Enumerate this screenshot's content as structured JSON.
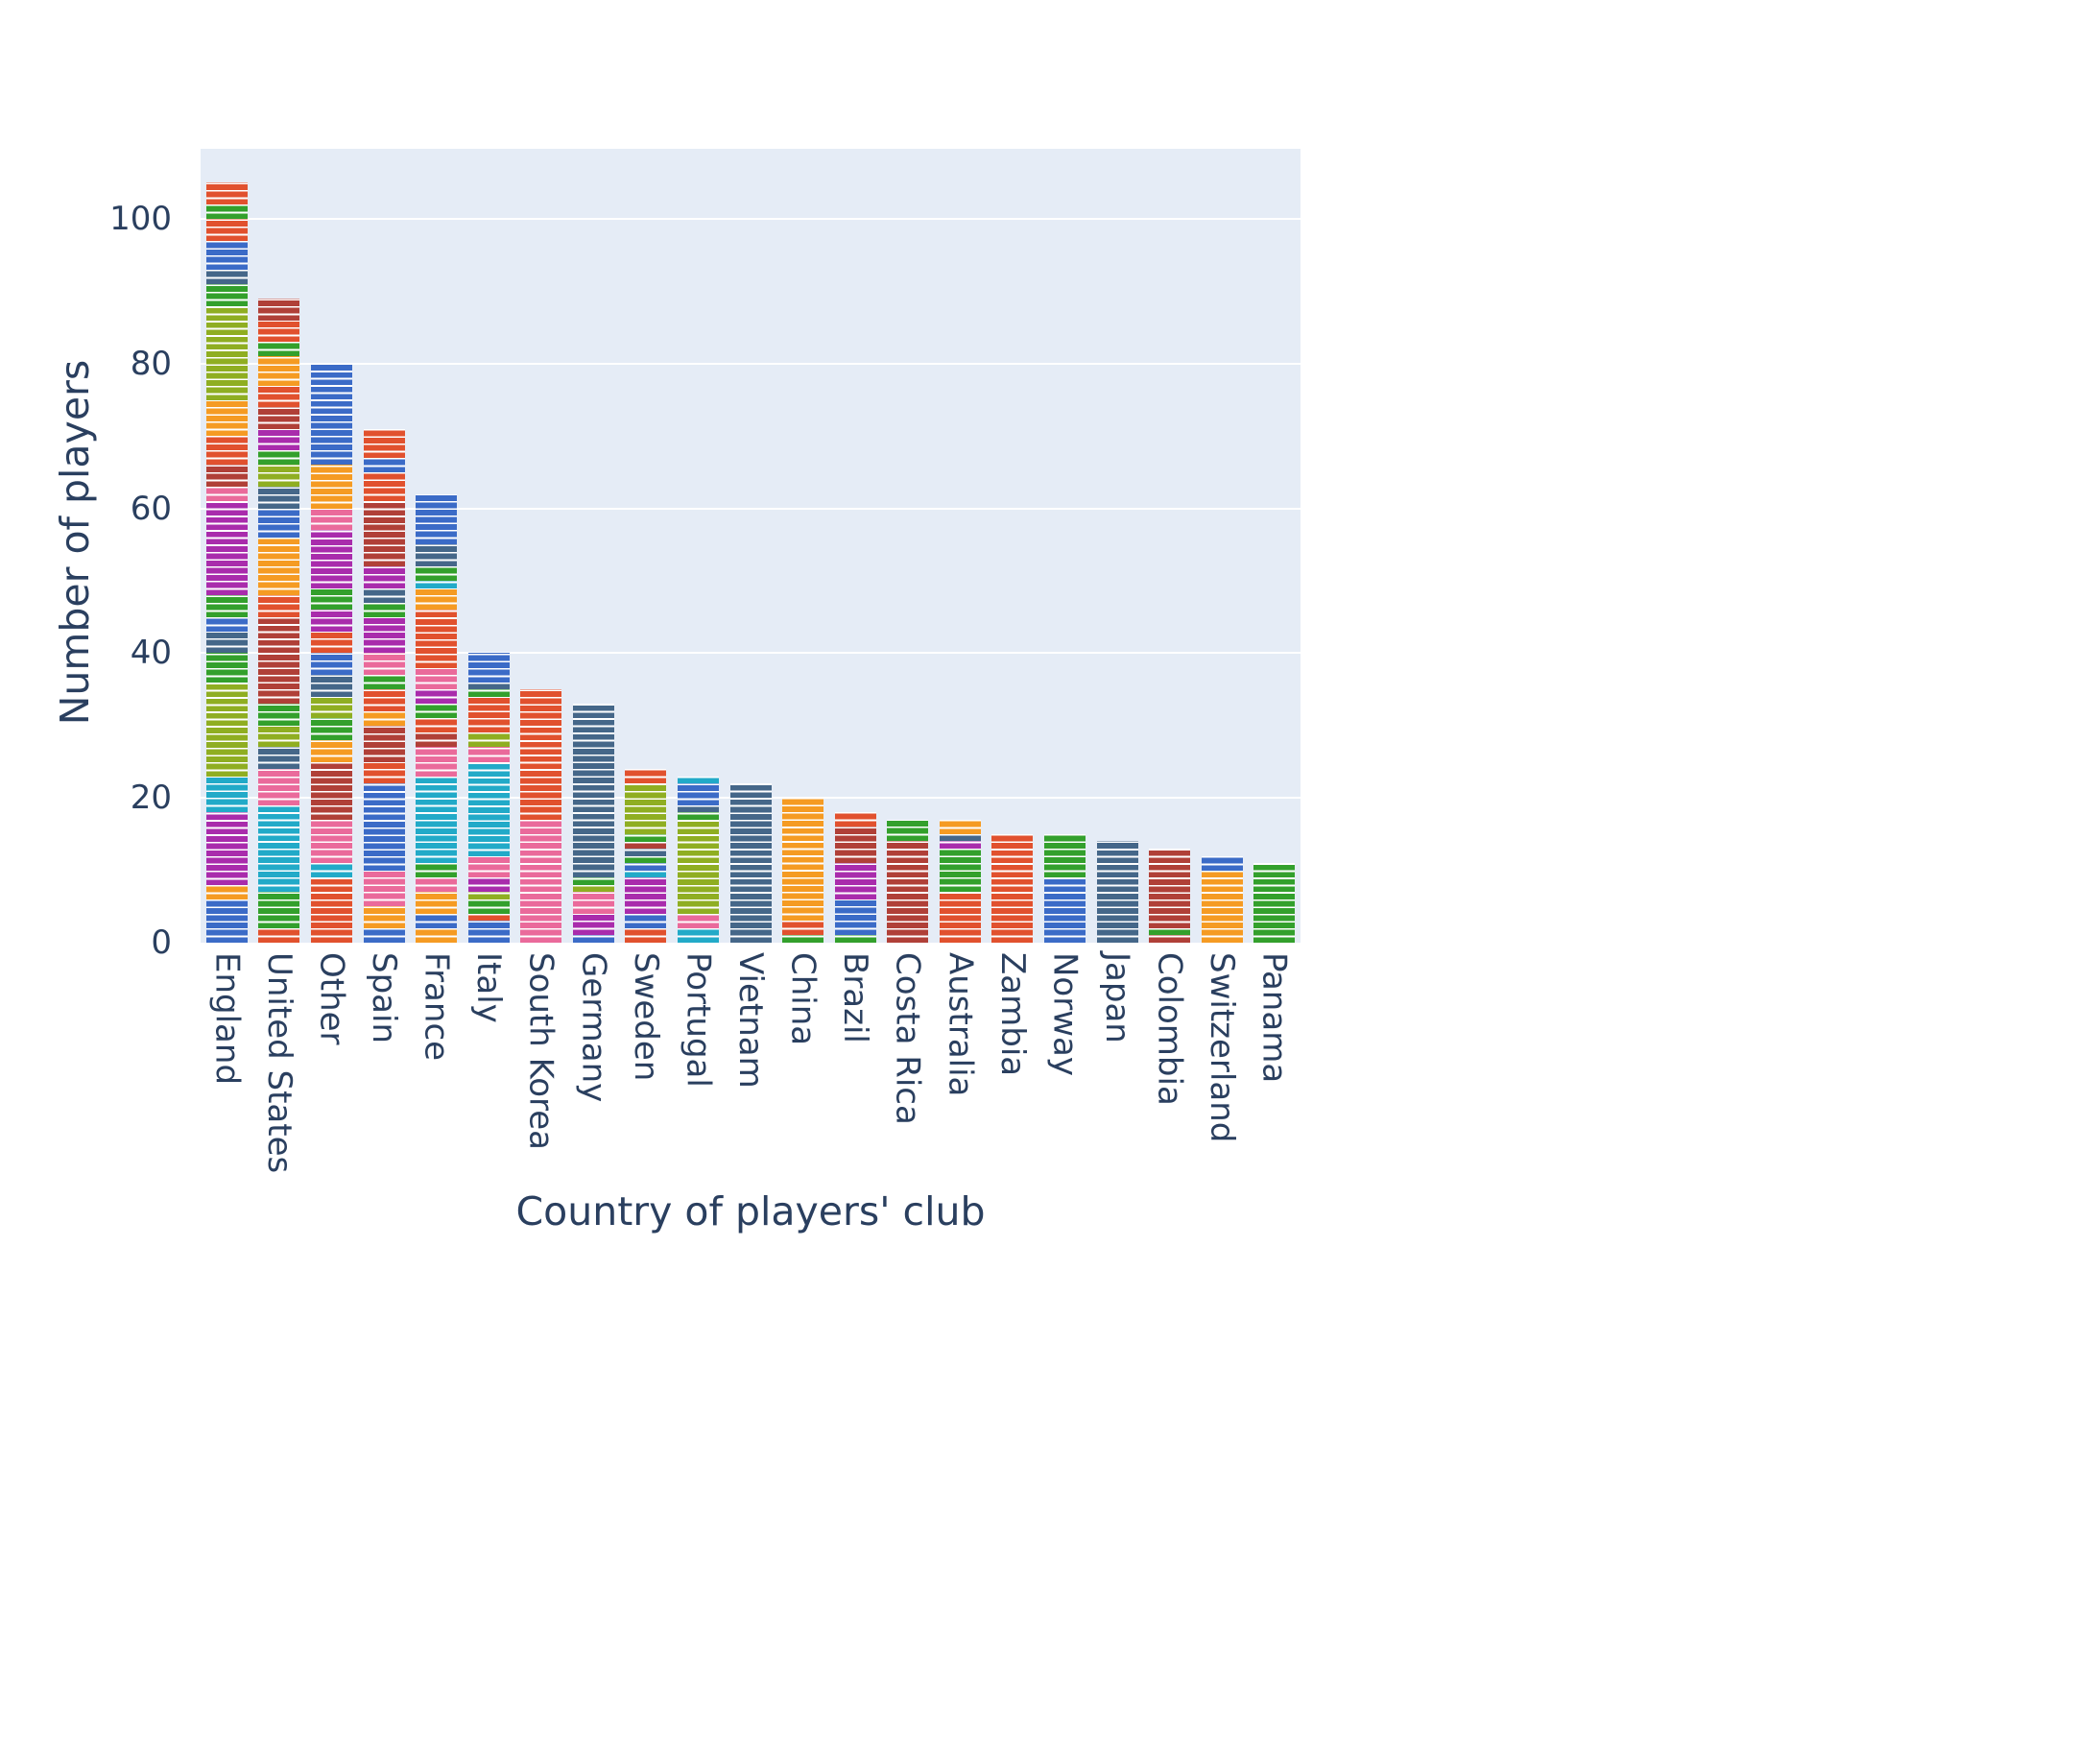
{
  "layout_colors": {
    "page_bg": "#ffffff",
    "plot_bg": "#e5ecf6",
    "grid": "#ffffff",
    "text": "#2a3f5f"
  },
  "chart_data": {
    "type": "bar",
    "stacked": true,
    "title": "",
    "xlabel": "Country of players' club",
    "ylabel": "Number of players",
    "yticks": [
      0,
      20,
      40,
      60,
      80,
      100
    ],
    "ylim": [
      0,
      109.7
    ],
    "grid": true,
    "legend": "none",
    "categories": [
      "England",
      "United States",
      "Other",
      "Spain",
      "France",
      "Italy",
      "South Korea",
      "Germany",
      "Sweden",
      "Portugal",
      "Vietnam",
      "China",
      "Brazil",
      "Costa Rica",
      "Australia",
      "Zambia",
      "Norway",
      "Japan",
      "Colombia",
      "Switzerland",
      "Panama"
    ],
    "values": [
      105,
      89,
      80,
      71,
      62,
      40,
      35,
      33,
      24,
      23,
      22,
      20,
      18,
      17,
      17,
      15,
      15,
      14,
      13,
      12,
      11
    ],
    "unit_note": "each bar is a stack of 1-player stripes separated by thin white lines; segments below are contiguous color blocks bottom-to-top",
    "palette": {
      "blue": "#3b6bc7",
      "orange": "#f59b23",
      "red": "#e1512e",
      "green": "#33a02c",
      "brick": "#b04038",
      "magenta": "#a92cac",
      "pink": "#ea6a9b",
      "teal": "#22aac8",
      "olive": "#8fae22",
      "slate": "#456789"
    },
    "bars": [
      {
        "country": "England",
        "total": 105,
        "segments": [
          [
            "blue",
            6
          ],
          [
            "orange",
            2
          ],
          [
            "magenta",
            10
          ],
          [
            "teal",
            5
          ],
          [
            "olive",
            13
          ],
          [
            "green",
            4
          ],
          [
            "slate",
            3
          ],
          [
            "blue",
            2
          ],
          [
            "green",
            3
          ],
          [
            "magenta",
            13
          ],
          [
            "pink",
            2
          ],
          [
            "brick",
            3
          ],
          [
            "red",
            4
          ],
          [
            "orange",
            5
          ],
          [
            "olive",
            13
          ],
          [
            "green",
            3
          ],
          [
            "slate",
            2
          ],
          [
            "blue",
            4
          ],
          [
            "red",
            3
          ],
          [
            "green",
            2
          ],
          [
            "red",
            3
          ]
        ]
      },
      {
        "country": "United States",
        "total": 89,
        "segments": [
          [
            "red",
            2
          ],
          [
            "green",
            5
          ],
          [
            "teal",
            12
          ],
          [
            "pink",
            5
          ],
          [
            "slate",
            3
          ],
          [
            "olive",
            3
          ],
          [
            "green",
            3
          ],
          [
            "brick",
            12
          ],
          [
            "red",
            3
          ],
          [
            "orange",
            8
          ],
          [
            "blue",
            4
          ],
          [
            "slate",
            3
          ],
          [
            "olive",
            3
          ],
          [
            "green",
            2
          ],
          [
            "magenta",
            3
          ],
          [
            "brick",
            3
          ],
          [
            "red",
            3
          ],
          [
            "orange",
            4
          ],
          [
            "green",
            2
          ],
          [
            "red",
            3
          ],
          [
            "brick",
            3
          ]
        ]
      },
      {
        "country": "Other",
        "total": 80,
        "segments": [
          [
            "red",
            9
          ],
          [
            "teal",
            2
          ],
          [
            "pink",
            6
          ],
          [
            "brick",
            8
          ],
          [
            "orange",
            3
          ],
          [
            "green",
            3
          ],
          [
            "olive",
            3
          ],
          [
            "slate",
            3
          ],
          [
            "blue",
            3
          ],
          [
            "red",
            3
          ],
          [
            "magenta",
            3
          ],
          [
            "green",
            3
          ],
          [
            "magenta",
            8
          ],
          [
            "pink",
            3
          ],
          [
            "orange",
            6
          ],
          [
            "blue",
            14
          ]
        ]
      },
      {
        "country": "Spain",
        "total": 71,
        "segments": [
          [
            "blue",
            2
          ],
          [
            "orange",
            3
          ],
          [
            "pink",
            5
          ],
          [
            "blue",
            12
          ],
          [
            "red",
            3
          ],
          [
            "brick",
            5
          ],
          [
            "orange",
            2
          ],
          [
            "red",
            3
          ],
          [
            "green",
            2
          ],
          [
            "pink",
            3
          ],
          [
            "magenta",
            5
          ],
          [
            "green",
            2
          ],
          [
            "slate",
            2
          ],
          [
            "magenta",
            3
          ],
          [
            "brick",
            9
          ],
          [
            "red",
            4
          ],
          [
            "blue",
            2
          ],
          [
            "red",
            4
          ]
        ]
      },
      {
        "country": "France",
        "total": 62,
        "segments": [
          [
            "orange",
            2
          ],
          [
            "blue",
            2
          ],
          [
            "orange",
            3
          ],
          [
            "pink",
            2
          ],
          [
            "green",
            2
          ],
          [
            "teal",
            12
          ],
          [
            "pink",
            4
          ],
          [
            "brick",
            2
          ],
          [
            "red",
            2
          ],
          [
            "green",
            2
          ],
          [
            "magenta",
            2
          ],
          [
            "pink",
            3
          ],
          [
            "red",
            8
          ],
          [
            "orange",
            3
          ],
          [
            "teal",
            1
          ],
          [
            "green",
            2
          ],
          [
            "slate",
            3
          ],
          [
            "blue",
            7
          ]
        ]
      },
      {
        "country": "Italy",
        "total": 40,
        "segments": [
          [
            "blue",
            3
          ],
          [
            "red",
            1
          ],
          [
            "green",
            2
          ],
          [
            "olive",
            1
          ],
          [
            "magenta",
            2
          ],
          [
            "pink",
            3
          ],
          [
            "teal",
            13
          ],
          [
            "pink",
            2
          ],
          [
            "olive",
            2
          ],
          [
            "red",
            5
          ],
          [
            "green",
            1
          ],
          [
            "slate",
            1
          ],
          [
            "blue",
            4
          ]
        ]
      },
      {
        "country": "South Korea",
        "total": 35,
        "segments": [
          [
            "pink",
            17
          ],
          [
            "red",
            18
          ]
        ]
      },
      {
        "country": "Germany",
        "total": 33,
        "segments": [
          [
            "blue",
            1
          ],
          [
            "magenta",
            3
          ],
          [
            "pink",
            3
          ],
          [
            "olive",
            1
          ],
          [
            "green",
            1
          ],
          [
            "slate",
            24
          ]
        ]
      },
      {
        "country": "Sweden",
        "total": 24,
        "segments": [
          [
            "red",
            2
          ],
          [
            "blue",
            2
          ],
          [
            "magenta",
            5
          ],
          [
            "teal",
            1
          ],
          [
            "blue",
            1
          ],
          [
            "green",
            1
          ],
          [
            "slate",
            1
          ],
          [
            "brick",
            1
          ],
          [
            "green",
            1
          ],
          [
            "olive",
            7
          ],
          [
            "red",
            2
          ]
        ]
      },
      {
        "country": "Portugal",
        "total": 23,
        "segments": [
          [
            "teal",
            2
          ],
          [
            "pink",
            2
          ],
          [
            "olive",
            13
          ],
          [
            "green",
            1
          ],
          [
            "slate",
            1
          ],
          [
            "blue",
            3
          ],
          [
            "teal",
            1
          ]
        ]
      },
      {
        "country": "Vietnam",
        "total": 22,
        "segments": [
          [
            "slate",
            22
          ]
        ]
      },
      {
        "country": "China",
        "total": 20,
        "segments": [
          [
            "green",
            1
          ],
          [
            "red",
            2
          ],
          [
            "orange",
            17
          ]
        ]
      },
      {
        "country": "Brazil",
        "total": 18,
        "segments": [
          [
            "green",
            1
          ],
          [
            "blue",
            5
          ],
          [
            "magenta",
            5
          ],
          [
            "brick",
            5
          ],
          [
            "red",
            2
          ]
        ]
      },
      {
        "country": "Costa Rica",
        "total": 17,
        "segments": [
          [
            "brick",
            14
          ],
          [
            "green",
            3
          ]
        ]
      },
      {
        "country": "Australia",
        "total": 17,
        "segments": [
          [
            "red",
            7
          ],
          [
            "green",
            6
          ],
          [
            "magenta",
            1
          ],
          [
            "slate",
            1
          ],
          [
            "orange",
            2
          ]
        ]
      },
      {
        "country": "Zambia",
        "total": 15,
        "segments": [
          [
            "red",
            15
          ]
        ]
      },
      {
        "country": "Norway",
        "total": 15,
        "segments": [
          [
            "blue",
            9
          ],
          [
            "green",
            6
          ]
        ]
      },
      {
        "country": "Japan",
        "total": 14,
        "segments": [
          [
            "slate",
            14
          ]
        ]
      },
      {
        "country": "Colombia",
        "total": 13,
        "segments": [
          [
            "brick",
            1
          ],
          [
            "green",
            1
          ],
          [
            "brick",
            11
          ]
        ]
      },
      {
        "country": "Switzerland",
        "total": 12,
        "segments": [
          [
            "orange",
            10
          ],
          [
            "blue",
            2
          ]
        ]
      },
      {
        "country": "Panama",
        "total": 11,
        "segments": [
          [
            "green",
            11
          ]
        ]
      }
    ]
  }
}
